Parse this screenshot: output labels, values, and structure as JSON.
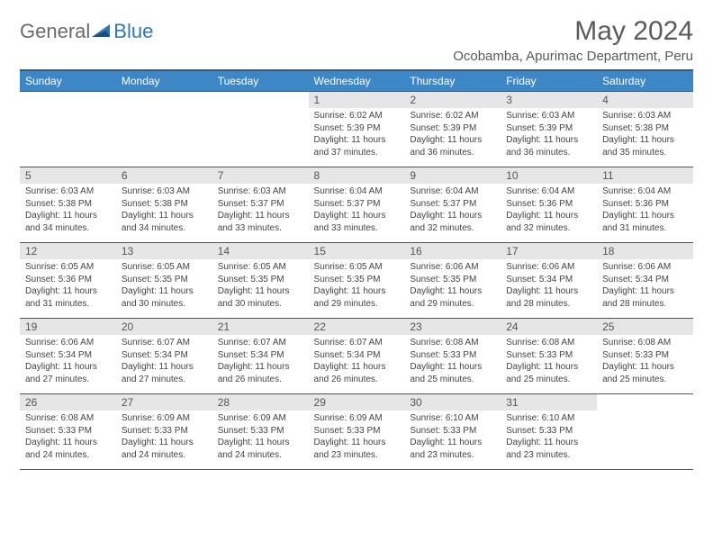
{
  "brand": {
    "general": "General",
    "blue": "Blue"
  },
  "title": "May 2024",
  "location": "Ocobamba, Apurimac Department, Peru",
  "colors": {
    "header_bg": "#3d87c7",
    "header_border": "#2b5d86",
    "daynum_bg": "#e6e6e6",
    "text": "#444444",
    "title_text": "#5a5a5a",
    "logo_general": "#6a6a6a",
    "logo_blue": "#2f78b7"
  },
  "weekdays": [
    "Sunday",
    "Monday",
    "Tuesday",
    "Wednesday",
    "Thursday",
    "Friday",
    "Saturday"
  ],
  "weeks": [
    [
      null,
      null,
      null,
      {
        "d": "1",
        "sr": "Sunrise: 6:02 AM",
        "ss": "Sunset: 5:39 PM",
        "dl1": "Daylight: 11 hours",
        "dl2": "and 37 minutes."
      },
      {
        "d": "2",
        "sr": "Sunrise: 6:02 AM",
        "ss": "Sunset: 5:39 PM",
        "dl1": "Daylight: 11 hours",
        "dl2": "and 36 minutes."
      },
      {
        "d": "3",
        "sr": "Sunrise: 6:03 AM",
        "ss": "Sunset: 5:39 PM",
        "dl1": "Daylight: 11 hours",
        "dl2": "and 36 minutes."
      },
      {
        "d": "4",
        "sr": "Sunrise: 6:03 AM",
        "ss": "Sunset: 5:38 PM",
        "dl1": "Daylight: 11 hours",
        "dl2": "and 35 minutes."
      }
    ],
    [
      {
        "d": "5",
        "sr": "Sunrise: 6:03 AM",
        "ss": "Sunset: 5:38 PM",
        "dl1": "Daylight: 11 hours",
        "dl2": "and 34 minutes."
      },
      {
        "d": "6",
        "sr": "Sunrise: 6:03 AM",
        "ss": "Sunset: 5:38 PM",
        "dl1": "Daylight: 11 hours",
        "dl2": "and 34 minutes."
      },
      {
        "d": "7",
        "sr": "Sunrise: 6:03 AM",
        "ss": "Sunset: 5:37 PM",
        "dl1": "Daylight: 11 hours",
        "dl2": "and 33 minutes."
      },
      {
        "d": "8",
        "sr": "Sunrise: 6:04 AM",
        "ss": "Sunset: 5:37 PM",
        "dl1": "Daylight: 11 hours",
        "dl2": "and 33 minutes."
      },
      {
        "d": "9",
        "sr": "Sunrise: 6:04 AM",
        "ss": "Sunset: 5:37 PM",
        "dl1": "Daylight: 11 hours",
        "dl2": "and 32 minutes."
      },
      {
        "d": "10",
        "sr": "Sunrise: 6:04 AM",
        "ss": "Sunset: 5:36 PM",
        "dl1": "Daylight: 11 hours",
        "dl2": "and 32 minutes."
      },
      {
        "d": "11",
        "sr": "Sunrise: 6:04 AM",
        "ss": "Sunset: 5:36 PM",
        "dl1": "Daylight: 11 hours",
        "dl2": "and 31 minutes."
      }
    ],
    [
      {
        "d": "12",
        "sr": "Sunrise: 6:05 AM",
        "ss": "Sunset: 5:36 PM",
        "dl1": "Daylight: 11 hours",
        "dl2": "and 31 minutes."
      },
      {
        "d": "13",
        "sr": "Sunrise: 6:05 AM",
        "ss": "Sunset: 5:35 PM",
        "dl1": "Daylight: 11 hours",
        "dl2": "and 30 minutes."
      },
      {
        "d": "14",
        "sr": "Sunrise: 6:05 AM",
        "ss": "Sunset: 5:35 PM",
        "dl1": "Daylight: 11 hours",
        "dl2": "and 30 minutes."
      },
      {
        "d": "15",
        "sr": "Sunrise: 6:05 AM",
        "ss": "Sunset: 5:35 PM",
        "dl1": "Daylight: 11 hours",
        "dl2": "and 29 minutes."
      },
      {
        "d": "16",
        "sr": "Sunrise: 6:06 AM",
        "ss": "Sunset: 5:35 PM",
        "dl1": "Daylight: 11 hours",
        "dl2": "and 29 minutes."
      },
      {
        "d": "17",
        "sr": "Sunrise: 6:06 AM",
        "ss": "Sunset: 5:34 PM",
        "dl1": "Daylight: 11 hours",
        "dl2": "and 28 minutes."
      },
      {
        "d": "18",
        "sr": "Sunrise: 6:06 AM",
        "ss": "Sunset: 5:34 PM",
        "dl1": "Daylight: 11 hours",
        "dl2": "and 28 minutes."
      }
    ],
    [
      {
        "d": "19",
        "sr": "Sunrise: 6:06 AM",
        "ss": "Sunset: 5:34 PM",
        "dl1": "Daylight: 11 hours",
        "dl2": "and 27 minutes."
      },
      {
        "d": "20",
        "sr": "Sunrise: 6:07 AM",
        "ss": "Sunset: 5:34 PM",
        "dl1": "Daylight: 11 hours",
        "dl2": "and 27 minutes."
      },
      {
        "d": "21",
        "sr": "Sunrise: 6:07 AM",
        "ss": "Sunset: 5:34 PM",
        "dl1": "Daylight: 11 hours",
        "dl2": "and 26 minutes."
      },
      {
        "d": "22",
        "sr": "Sunrise: 6:07 AM",
        "ss": "Sunset: 5:34 PM",
        "dl1": "Daylight: 11 hours",
        "dl2": "and 26 minutes."
      },
      {
        "d": "23",
        "sr": "Sunrise: 6:08 AM",
        "ss": "Sunset: 5:33 PM",
        "dl1": "Daylight: 11 hours",
        "dl2": "and 25 minutes."
      },
      {
        "d": "24",
        "sr": "Sunrise: 6:08 AM",
        "ss": "Sunset: 5:33 PM",
        "dl1": "Daylight: 11 hours",
        "dl2": "and 25 minutes."
      },
      {
        "d": "25",
        "sr": "Sunrise: 6:08 AM",
        "ss": "Sunset: 5:33 PM",
        "dl1": "Daylight: 11 hours",
        "dl2": "and 25 minutes."
      }
    ],
    [
      {
        "d": "26",
        "sr": "Sunrise: 6:08 AM",
        "ss": "Sunset: 5:33 PM",
        "dl1": "Daylight: 11 hours",
        "dl2": "and 24 minutes."
      },
      {
        "d": "27",
        "sr": "Sunrise: 6:09 AM",
        "ss": "Sunset: 5:33 PM",
        "dl1": "Daylight: 11 hours",
        "dl2": "and 24 minutes."
      },
      {
        "d": "28",
        "sr": "Sunrise: 6:09 AM",
        "ss": "Sunset: 5:33 PM",
        "dl1": "Daylight: 11 hours",
        "dl2": "and 24 minutes."
      },
      {
        "d": "29",
        "sr": "Sunrise: 6:09 AM",
        "ss": "Sunset: 5:33 PM",
        "dl1": "Daylight: 11 hours",
        "dl2": "and 23 minutes."
      },
      {
        "d": "30",
        "sr": "Sunrise: 6:10 AM",
        "ss": "Sunset: 5:33 PM",
        "dl1": "Daylight: 11 hours",
        "dl2": "and 23 minutes."
      },
      {
        "d": "31",
        "sr": "Sunrise: 6:10 AM",
        "ss": "Sunset: 5:33 PM",
        "dl1": "Daylight: 11 hours",
        "dl2": "and 23 minutes."
      },
      null
    ]
  ]
}
